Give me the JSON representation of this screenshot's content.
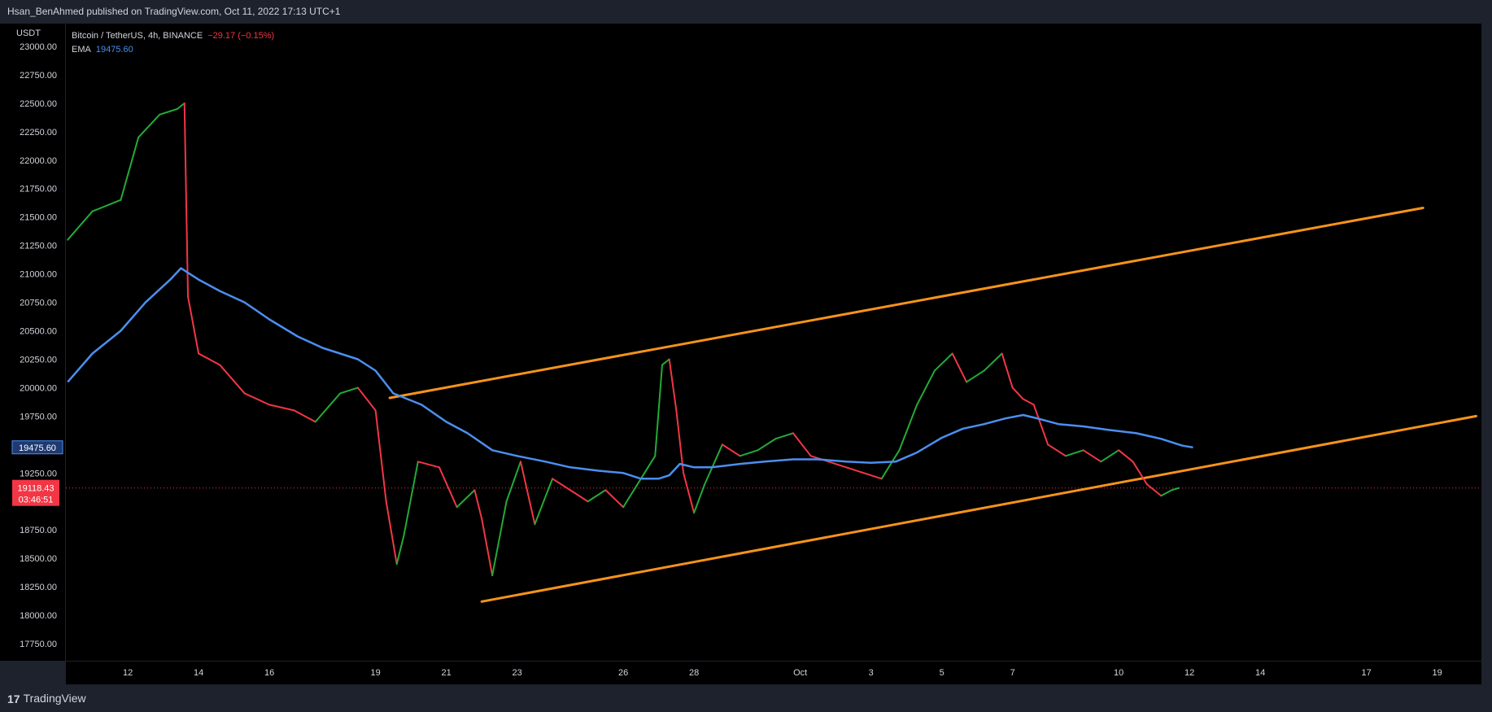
{
  "header": {
    "published_text": "Hsan_BenAhmed published on TradingView.com, Oct 11, 2022 17:13 UTC+1"
  },
  "footer": {
    "brand": "TradingView"
  },
  "legend": {
    "symbol": "Bitcoin / TetherUS, 4h, BINANCE",
    "change": "−29.17 (−0.15%)",
    "ema_label": "EMA",
    "ema_value": "19475.60"
  },
  "axis": {
    "unit": "USDT"
  },
  "colors": {
    "up": "#22ab37",
    "down": "#f23645",
    "ema": "#4b8fef",
    "trend": "#f7931a",
    "bg": "#000000"
  },
  "chart_data": {
    "type": "line",
    "title": "",
    "ylim": [
      17600,
      23200
    ],
    "y_ticks": [
      23000,
      22750,
      22500,
      22250,
      22000,
      21750,
      21500,
      21250,
      21000,
      20750,
      20500,
      20250,
      20000,
      19750,
      19250,
      19000,
      18750,
      18500,
      18250,
      18000,
      17750
    ],
    "y_tick_labels": [
      "23000.00",
      "22750.00",
      "22500.00",
      "22250.00",
      "22000.00",
      "21750.00",
      "21500.00",
      "21250.00",
      "21000.00",
      "20750.00",
      "20500.00",
      "20250.00",
      "20000.00",
      "19750.00",
      "19250.00",
      "19000.00",
      "18750.00",
      "18500.00",
      "18250.00",
      "18000.00",
      "17750.00"
    ],
    "x_tick_labels": [
      "12",
      "14",
      "16",
      "19",
      "21",
      "23",
      "26",
      "28",
      "Oct",
      "3",
      "5",
      "7",
      "10",
      "12",
      "14",
      "17",
      "19"
    ],
    "x_tick_days": [
      12,
      14,
      16,
      19,
      21,
      23,
      26,
      28,
      31,
      33,
      35,
      37,
      40,
      42,
      44,
      47,
      49
    ],
    "x_start_day": 10.25,
    "x_end_day": 50.25,
    "ema_badge": "19475.60",
    "last_price_badge": "19118.43",
    "countdown": "03:46:51",
    "last_price": 19118.43,
    "price_path": [
      [
        10.3,
        21300
      ],
      [
        11.0,
        21550
      ],
      [
        11.8,
        21650
      ],
      [
        12.3,
        22200
      ],
      [
        12.9,
        22400
      ],
      [
        13.4,
        22450
      ],
      [
        13.6,
        22500
      ],
      [
        13.7,
        20800
      ],
      [
        14.0,
        20300
      ],
      [
        14.6,
        20200
      ],
      [
        15.3,
        19950
      ],
      [
        16.0,
        19850
      ],
      [
        16.7,
        19800
      ],
      [
        17.3,
        19700
      ],
      [
        18.0,
        19950
      ],
      [
        18.5,
        20000
      ],
      [
        19.0,
        19800
      ],
      [
        19.3,
        19000
      ],
      [
        19.6,
        18450
      ],
      [
        19.8,
        18700
      ],
      [
        20.2,
        19350
      ],
      [
        20.8,
        19300
      ],
      [
        21.3,
        18950
      ],
      [
        21.8,
        19100
      ],
      [
        22.0,
        18850
      ],
      [
        22.3,
        18350
      ],
      [
        22.7,
        19000
      ],
      [
        23.1,
        19350
      ],
      [
        23.5,
        18800
      ],
      [
        24.0,
        19200
      ],
      [
        24.5,
        19100
      ],
      [
        25.0,
        19000
      ],
      [
        25.5,
        19100
      ],
      [
        26.0,
        18950
      ],
      [
        26.5,
        19200
      ],
      [
        26.9,
        19400
      ],
      [
        27.1,
        20200
      ],
      [
        27.3,
        20250
      ],
      [
        27.5,
        19800
      ],
      [
        27.7,
        19250
      ],
      [
        28.0,
        18900
      ],
      [
        28.3,
        19150
      ],
      [
        28.8,
        19500
      ],
      [
        29.3,
        19400
      ],
      [
        29.8,
        19450
      ],
      [
        30.3,
        19550
      ],
      [
        30.8,
        19600
      ],
      [
        31.3,
        19400
      ],
      [
        31.8,
        19350
      ],
      [
        32.3,
        19300
      ],
      [
        32.8,
        19250
      ],
      [
        33.3,
        19200
      ],
      [
        33.8,
        19450
      ],
      [
        34.3,
        19850
      ],
      [
        34.8,
        20150
      ],
      [
        35.3,
        20300
      ],
      [
        35.7,
        20050
      ],
      [
        36.2,
        20150
      ],
      [
        36.7,
        20300
      ],
      [
        37.0,
        20000
      ],
      [
        37.3,
        19900
      ],
      [
        37.6,
        19850
      ],
      [
        38.0,
        19500
      ],
      [
        38.5,
        19400
      ],
      [
        39.0,
        19450
      ],
      [
        39.5,
        19350
      ],
      [
        40.0,
        19450
      ],
      [
        40.4,
        19350
      ],
      [
        40.8,
        19150
      ],
      [
        41.2,
        19050
      ],
      [
        41.5,
        19100
      ],
      [
        41.7,
        19118
      ]
    ],
    "ema_path": [
      [
        10.3,
        20050
      ],
      [
        11.0,
        20300
      ],
      [
        11.8,
        20500
      ],
      [
        12.5,
        20750
      ],
      [
        13.2,
        20950
      ],
      [
        13.5,
        21050
      ],
      [
        14.0,
        20950
      ],
      [
        14.6,
        20850
      ],
      [
        15.3,
        20750
      ],
      [
        16.0,
        20600
      ],
      [
        16.8,
        20450
      ],
      [
        17.5,
        20350
      ],
      [
        18.0,
        20300
      ],
      [
        18.5,
        20250
      ],
      [
        19.0,
        20150
      ],
      [
        19.5,
        19950
      ],
      [
        20.3,
        19850
      ],
      [
        21.0,
        19700
      ],
      [
        21.6,
        19600
      ],
      [
        22.3,
        19450
      ],
      [
        23.0,
        19400
      ],
      [
        23.8,
        19350
      ],
      [
        24.5,
        19300
      ],
      [
        25.3,
        19270
      ],
      [
        26.0,
        19250
      ],
      [
        26.5,
        19200
      ],
      [
        27.0,
        19200
      ],
      [
        27.3,
        19230
      ],
      [
        27.6,
        19330
      ],
      [
        28.0,
        19300
      ],
      [
        28.5,
        19300
      ],
      [
        29.3,
        19330
      ],
      [
        30.0,
        19350
      ],
      [
        30.8,
        19370
      ],
      [
        31.5,
        19370
      ],
      [
        32.3,
        19350
      ],
      [
        33.0,
        19340
      ],
      [
        33.7,
        19350
      ],
      [
        34.3,
        19430
      ],
      [
        35.0,
        19560
      ],
      [
        35.6,
        19640
      ],
      [
        36.2,
        19680
      ],
      [
        36.8,
        19730
      ],
      [
        37.3,
        19760
      ],
      [
        37.7,
        19730
      ],
      [
        38.3,
        19680
      ],
      [
        39.0,
        19660
      ],
      [
        39.7,
        19630
      ],
      [
        40.5,
        19600
      ],
      [
        41.2,
        19550
      ],
      [
        41.8,
        19490
      ],
      [
        42.1,
        19475
      ]
    ],
    "trendlines": [
      {
        "from": [
          19.4,
          19910
        ],
        "to": [
          48.6,
          21580
        ]
      },
      {
        "from": [
          22.0,
          18120
        ],
        "to": [
          50.1,
          19750
        ]
      }
    ]
  }
}
